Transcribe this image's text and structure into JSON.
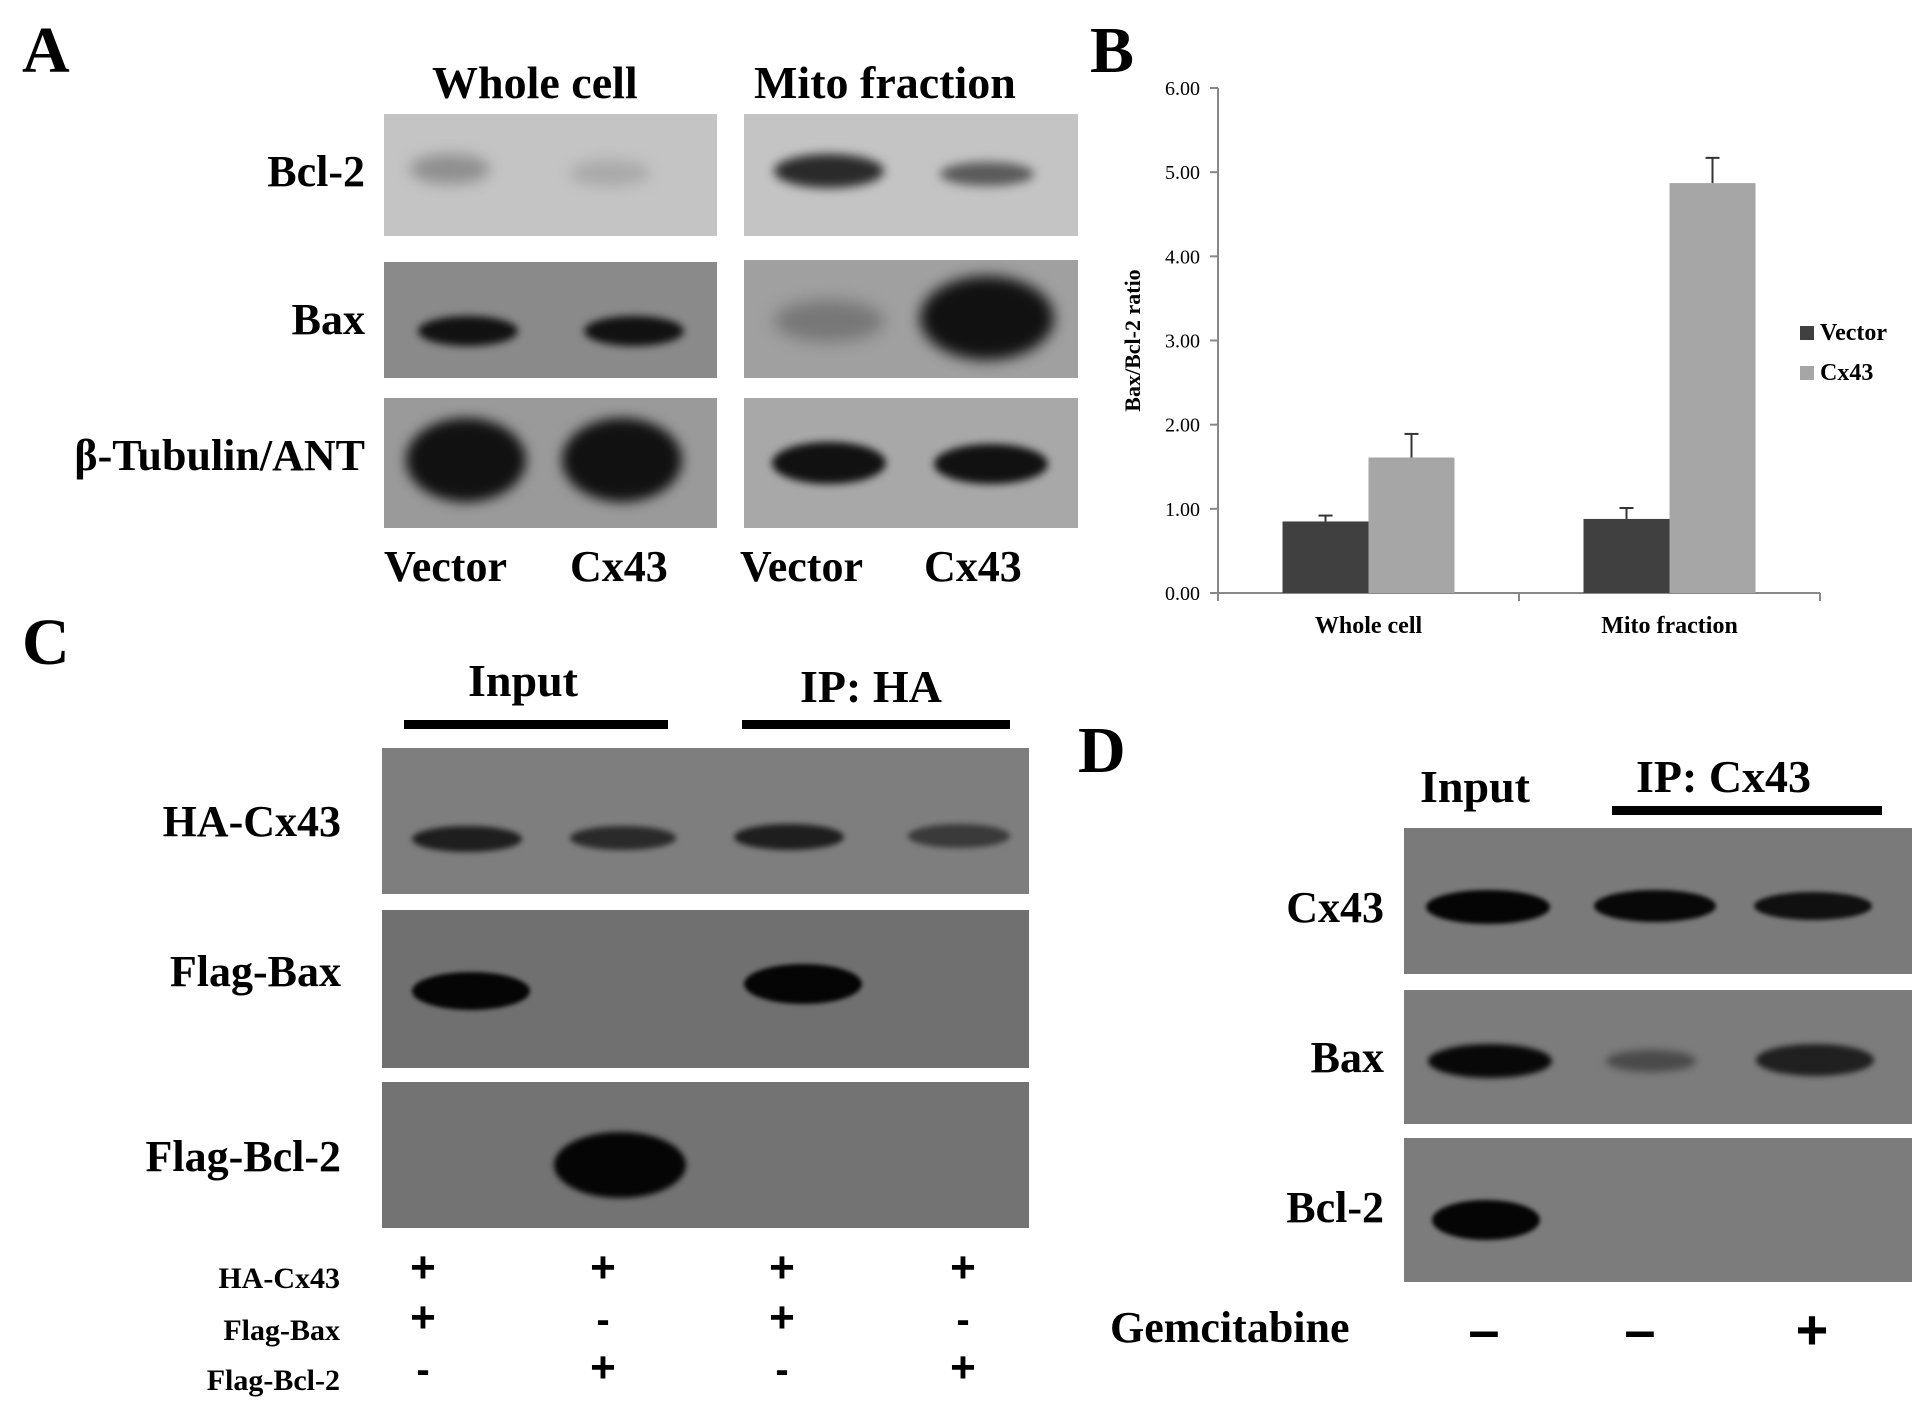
{
  "panelA": {
    "label": "A",
    "headers": [
      "Whole cell",
      "Mito fraction"
    ],
    "rows": [
      "Bcl-2",
      "Bax",
      "β-Tubulin/ANT"
    ],
    "lanes": [
      "Vector",
      "Cx43",
      "Vector",
      "Cx43"
    ]
  },
  "panelB": {
    "label": "B",
    "chart_data": {
      "type": "bar",
      "categories": [
        "Whole cell",
        "Mito fraction"
      ],
      "series": [
        {
          "name": "Vector",
          "values": [
            0.85,
            0.88
          ],
          "errors": [
            0.07,
            0.13
          ],
          "color": "#404040"
        },
        {
          "name": "Cx43",
          "values": [
            1.61,
            4.87
          ],
          "errors": [
            0.28,
            0.3
          ],
          "color": "#a6a6a6"
        }
      ],
      "ylabel": "Bax/Bcl-2 ratio",
      "ylim": [
        0,
        6
      ],
      "yticks": [
        "0.00",
        "1.00",
        "2.00",
        "3.00",
        "4.00",
        "5.00",
        "6.00"
      ],
      "legend": "right",
      "grid": false
    }
  },
  "panelC": {
    "label": "C",
    "headers": [
      "Input",
      "IP: HA"
    ],
    "rows": [
      "HA-Cx43",
      "Flag-Bax",
      "Flag-Bcl-2"
    ],
    "conditions": [
      {
        "name": "HA-Cx43",
        "values": [
          "+",
          "+",
          "+",
          "+"
        ]
      },
      {
        "name": "Flag-Bax",
        "values": [
          "+",
          "-",
          "+",
          "-"
        ]
      },
      {
        "name": "Flag-Bcl-2",
        "values": [
          "-",
          "+",
          "-",
          "+"
        ]
      }
    ]
  },
  "panelD": {
    "label": "D",
    "headers": [
      "Input",
      "IP: Cx43"
    ],
    "rows": [
      "Cx43",
      "Bax",
      "Bcl-2"
    ],
    "treatment": {
      "name": "Gemcitabine",
      "values": [
        "–",
        "–",
        "+"
      ]
    }
  }
}
